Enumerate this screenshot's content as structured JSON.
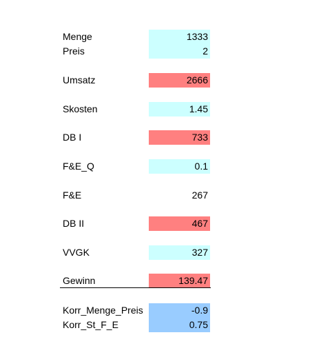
{
  "rows": [
    {
      "label": "Menge",
      "value": "1333"
    },
    {
      "label": "Preis",
      "value": "2"
    },
    {
      "label": "Umsatz",
      "value": "2666"
    },
    {
      "label": "Skosten",
      "value": "1.45"
    },
    {
      "label": "DB I",
      "value": "733"
    },
    {
      "label": "F&E_Q",
      "value": "0.1"
    },
    {
      "label": "F&E",
      "value": "267"
    },
    {
      "label": "DB II",
      "value": "467"
    },
    {
      "label": "VVGK",
      "value": "327"
    },
    {
      "label": "Gewinn",
      "value": "139.47"
    },
    {
      "label": "Korr_Menge_Preis",
      "value": "-0.9"
    },
    {
      "label": "Korr_St_F_E",
      "value": "0.75"
    }
  ],
  "colors": {
    "input": "#ccffff",
    "result": "#ff8080",
    "correlation": "#99ccff"
  }
}
